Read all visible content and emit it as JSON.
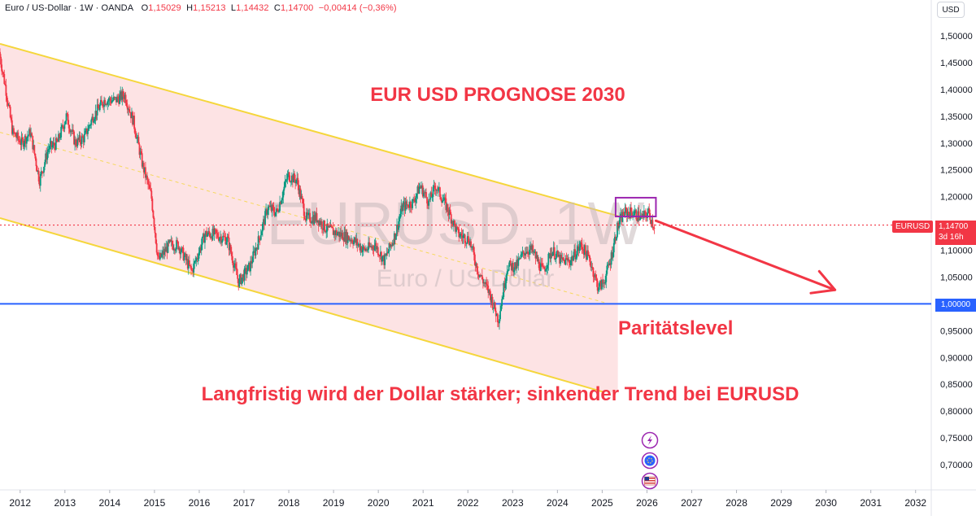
{
  "header": {
    "symbol": "Euro / US-Dollar · 1W · OANDA",
    "o_label": "O",
    "o_value": "1,15029",
    "h_label": "H",
    "h_value": "1,15213",
    "l_label": "L",
    "l_value": "1,14432",
    "c_label": "C",
    "c_value": "1,14700",
    "change": "−0,00414 (−0,36%)"
  },
  "currency_button": "USD",
  "watermark": {
    "ticker": "EURUSD, 1W",
    "name": "Euro / US-Dollar"
  },
  "price_label": {
    "symbol": "EURUSD",
    "value": "1,14700",
    "countdown": "3d 16h"
  },
  "parity_label": "1,00000",
  "colors": {
    "accent_red": "#f23645",
    "channel_line": "#f5d63c",
    "channel_fill": "#fde1e3",
    "parity_line": "#2962ff",
    "consolidation_box": "#9c27b0",
    "arrow": "#f23645",
    "candle_up": "#089981",
    "candle_down": "#f23645"
  },
  "icons": [
    "lightning-icon",
    "globe-event-icon",
    "us-flag-icon"
  ],
  "chart_data": {
    "type": "candlestick",
    "title": "EUR USD PROGNOSE 2030",
    "annotations": [
      "EUR USD PROGNOSE 2030",
      "Paritätslevel",
      "Langfristig wird der Dollar stärker; sinkender Trend bei EURUSD"
    ],
    "x_ticks": [
      "2012",
      "2013",
      "2014",
      "2015",
      "2016",
      "2017",
      "2018",
      "2019",
      "2020",
      "2021",
      "2022",
      "2023",
      "2024",
      "2025",
      "2026",
      "2027",
      "2028",
      "2029",
      "2030",
      "2031",
      "2032"
    ],
    "y_ticks": [
      "1,50000",
      "1,45000",
      "1,40000",
      "1,35000",
      "1,30000",
      "1,25000",
      "1,20000",
      "1,15000",
      "1,10000",
      "1,05000",
      "1,00000",
      "0,95000",
      "0,90000",
      "0,85000",
      "0,80000",
      "0,75000",
      "0,70000"
    ],
    "ylim": [
      0.66,
      1.52
    ],
    "xlim": [
      2011.6,
      2032.4
    ],
    "series": [
      {
        "values": [
          [
            2011.6,
            1.47
          ],
          [
            2011.75,
            1.4
          ],
          [
            2011.9,
            1.32
          ],
          [
            2012.1,
            1.3
          ],
          [
            2012.3,
            1.32
          ],
          [
            2012.5,
            1.23
          ],
          [
            2012.7,
            1.29
          ],
          [
            2012.9,
            1.3
          ],
          [
            2013.1,
            1.35
          ],
          [
            2013.3,
            1.3
          ],
          [
            2013.5,
            1.31
          ],
          [
            2013.7,
            1.35
          ],
          [
            2013.95,
            1.38
          ],
          [
            2014.2,
            1.38
          ],
          [
            2014.4,
            1.39
          ],
          [
            2014.6,
            1.34
          ],
          [
            2014.8,
            1.26
          ],
          [
            2015.0,
            1.2
          ],
          [
            2015.15,
            1.08
          ],
          [
            2015.4,
            1.11
          ],
          [
            2015.6,
            1.11
          ],
          [
            2015.9,
            1.06
          ],
          [
            2016.2,
            1.13
          ],
          [
            2016.4,
            1.13
          ],
          [
            2016.7,
            1.12
          ],
          [
            2016.95,
            1.04
          ],
          [
            2017.2,
            1.07
          ],
          [
            2017.4,
            1.12
          ],
          [
            2017.6,
            1.18
          ],
          [
            2017.8,
            1.17
          ],
          [
            2018.05,
            1.24
          ],
          [
            2018.25,
            1.23
          ],
          [
            2018.45,
            1.16
          ],
          [
            2018.7,
            1.16
          ],
          [
            2018.9,
            1.14
          ],
          [
            2019.2,
            1.13
          ],
          [
            2019.5,
            1.12
          ],
          [
            2019.75,
            1.1
          ],
          [
            2020.0,
            1.11
          ],
          [
            2020.2,
            1.08
          ],
          [
            2020.45,
            1.13
          ],
          [
            2020.6,
            1.18
          ],
          [
            2020.85,
            1.19
          ],
          [
            2021.0,
            1.22
          ],
          [
            2021.2,
            1.19
          ],
          [
            2021.35,
            1.22
          ],
          [
            2021.6,
            1.18
          ],
          [
            2021.85,
            1.13
          ],
          [
            2022.1,
            1.12
          ],
          [
            2022.3,
            1.06
          ],
          [
            2022.55,
            1.02
          ],
          [
            2022.75,
            0.97
          ],
          [
            2022.95,
            1.07
          ],
          [
            2023.15,
            1.07
          ],
          [
            2023.35,
            1.1
          ],
          [
            2023.5,
            1.1
          ],
          [
            2023.75,
            1.06
          ],
          [
            2023.95,
            1.1
          ],
          [
            2024.15,
            1.08
          ],
          [
            2024.35,
            1.08
          ],
          [
            2024.6,
            1.11
          ],
          [
            2024.8,
            1.08
          ],
          [
            2024.98,
            1.03
          ],
          [
            2025.1,
            1.04
          ],
          [
            2025.25,
            1.08
          ],
          [
            2025.4,
            1.14
          ],
          [
            2025.55,
            1.17
          ],
          [
            2025.75,
            1.17
          ],
          [
            2025.95,
            1.16
          ],
          [
            2026.1,
            1.17
          ],
          [
            2026.22,
            1.147
          ]
        ]
      }
    ],
    "last_price": 1.147,
    "parity_level": 1.0,
    "channel": {
      "upper": [
        [
          2011.6,
          1.485
        ],
        [
          2025.4,
          1.164
        ]
      ],
      "lower": [
        [
          2011.6,
          1.16
        ],
        [
          2025.1,
          0.835
        ]
      ],
      "mid": [
        [
          2011.6,
          1.32
        ],
        [
          2025.2,
          1.0
        ]
      ],
      "shaded_until": 2025.4
    },
    "consolidation_box": {
      "x": [
        2025.35,
        2026.25
      ],
      "y": [
        1.163,
        1.198
      ]
    },
    "forecast_arrow": {
      "from": [
        2026.25,
        1.155
      ],
      "to": [
        2030.25,
        1.026
      ]
    },
    "grid": false
  }
}
